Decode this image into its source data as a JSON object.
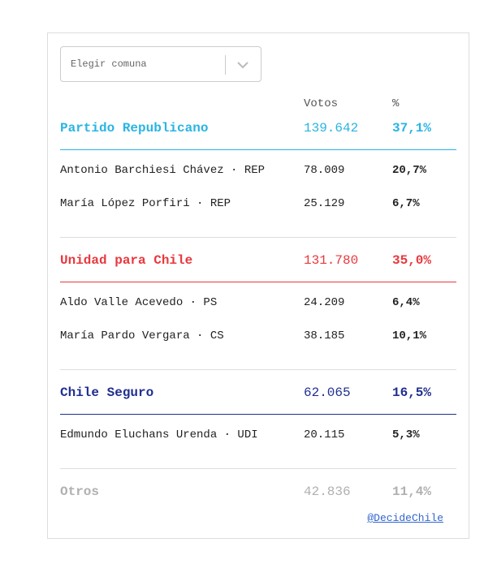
{
  "dropdown": {
    "placeholder": "Elegir comuna"
  },
  "table": {
    "headers": [
      "Votos",
      "%"
    ],
    "groups": [
      {
        "name": "Partido Republicano",
        "votes": "139.642",
        "percent": "37,1%",
        "color": "#2ab4e4",
        "candidates": [
          {
            "name": "Antonio Barchiesi Chávez · REP",
            "votes": "78.009",
            "percent": "20,7%"
          },
          {
            "name": "María López Porfiri · REP",
            "votes": "25.129",
            "percent": "6,7%"
          }
        ]
      },
      {
        "name": "Unidad para Chile",
        "votes": "131.780",
        "percent": "35,0%",
        "color": "#e8383d",
        "candidates": [
          {
            "name": "Aldo Valle Acevedo · PS",
            "votes": "24.209",
            "percent": "6,4%"
          },
          {
            "name": "María Pardo Vergara · CS",
            "votes": "38.185",
            "percent": "10,1%"
          }
        ]
      },
      {
        "name": "Chile Seguro",
        "votes": "62.065",
        "percent": "16,5%",
        "color": "#1f2f8f",
        "candidates": [
          {
            "name": "Edmundo Eluchans Urenda · UDI",
            "votes": "20.115",
            "percent": "5,3%"
          }
        ]
      }
    ],
    "other": {
      "name": "Otros",
      "votes": "42.836",
      "percent": "11,4%",
      "color": "#b0b0b0"
    }
  },
  "credit": "@DecideChile"
}
